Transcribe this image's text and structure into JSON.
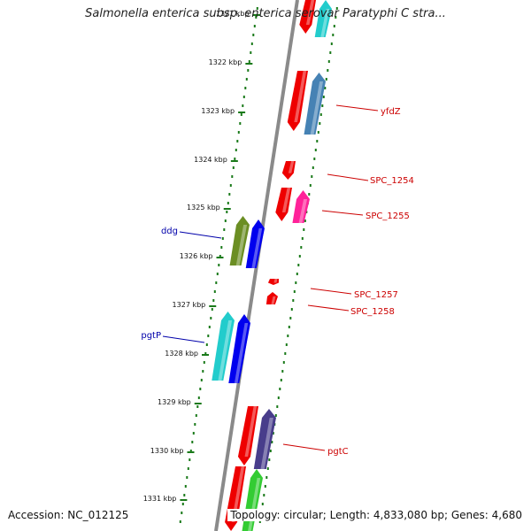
{
  "title": "Salmonella enterica subsp. enterica serovar Paratyphi C stra...",
  "footer": {
    "accession": "Accession: NC_012125",
    "summary": "Topology: circular; Length: 4,833,080 bp; Genes: 4,680"
  },
  "ticks": [
    "1321 kbp",
    "1322 kbp",
    "1323 kbp",
    "1324 kbp",
    "1325 kbp",
    "1326 kbp",
    "1327 kbp",
    "1328 kbp",
    "1329 kbp",
    "1330 kbp",
    "1331 kbp"
  ],
  "gene_labels": [
    {
      "name": "yfdZ",
      "color": "#cc0000"
    },
    {
      "name": "SPC_1254",
      "color": "#cc0000"
    },
    {
      "name": "SPC_1255",
      "color": "#cc0000"
    },
    {
      "name": "ddg",
      "color": "#0000aa"
    },
    {
      "name": "SPC_1257",
      "color": "#cc0000"
    },
    {
      "name": "SPC_1258",
      "color": "#cc0000"
    },
    {
      "name": "pgtP",
      "color": "#0000aa"
    },
    {
      "name": "pgtC",
      "color": "#cc0000"
    }
  ],
  "colors": {
    "backbone": "#8a8a8a",
    "tick": "#1a7a1a",
    "red": "#ee0000",
    "cyan": "#22cccc",
    "steel_blue": "#4682b4",
    "pink": "#ff2299",
    "olive": "#6b8e23",
    "blue": "#0000ee",
    "slate": "#483d8b",
    "green": "#33cc33"
  }
}
